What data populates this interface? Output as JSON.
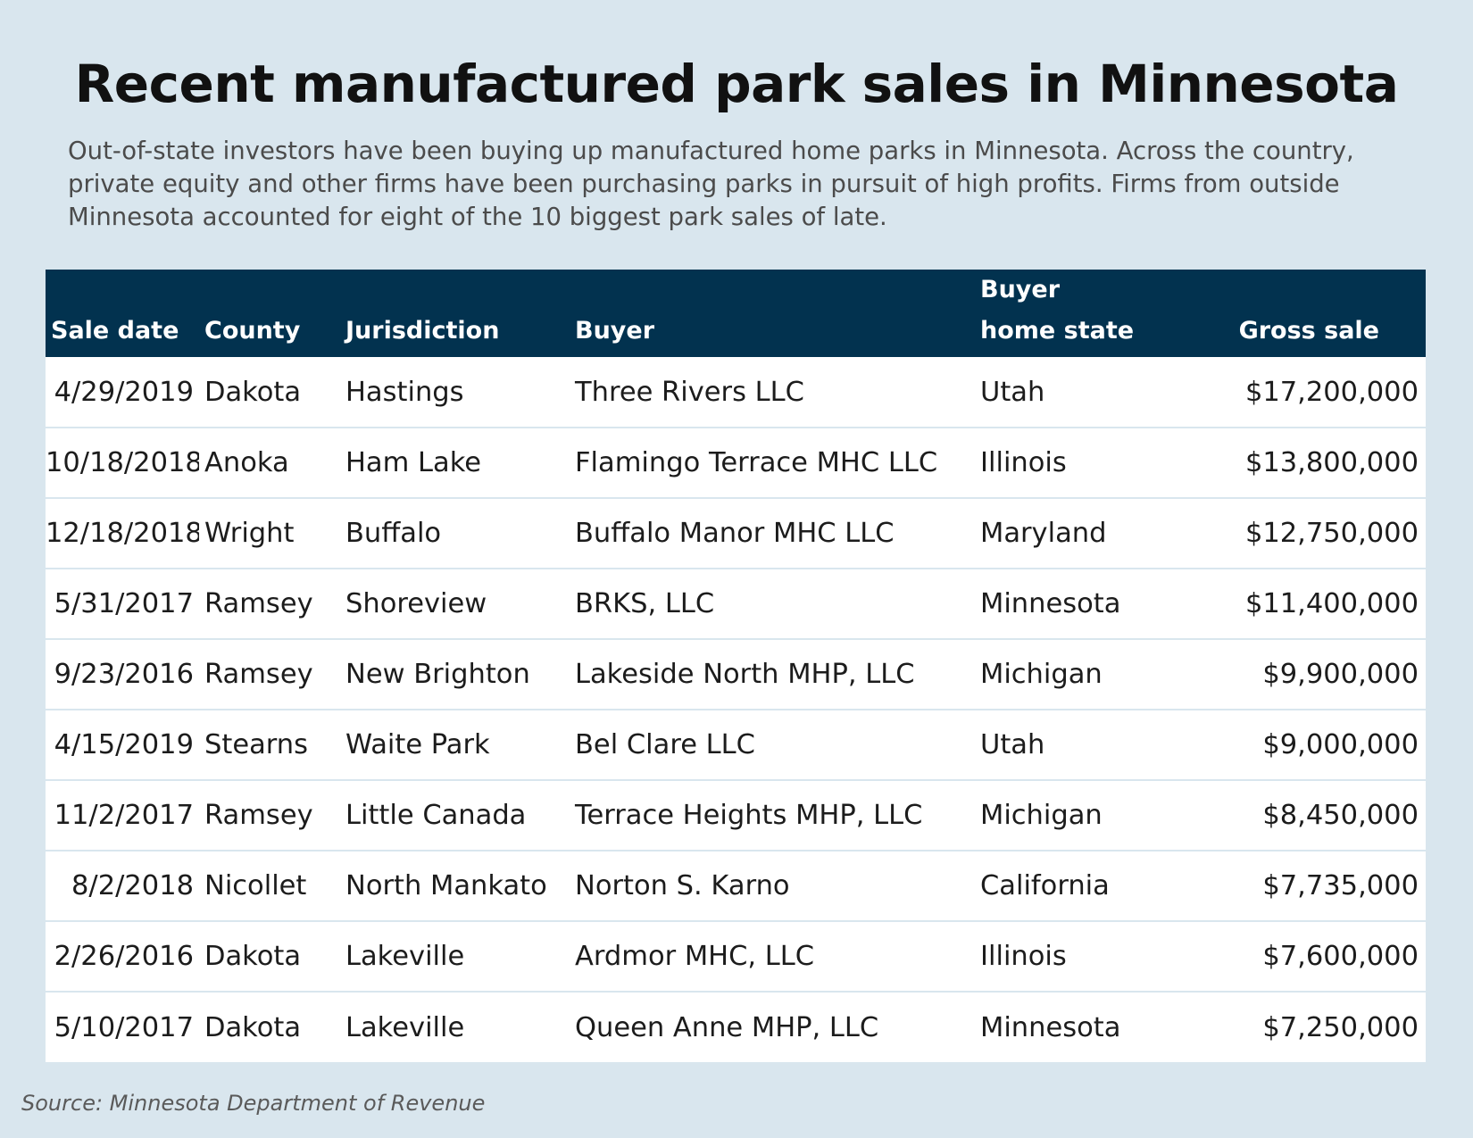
{
  "title": "Recent manufactured park sales in Minnesota",
  "subtitle": "Out-of-state investors have been buying up manufactured home parks in Minnesota. Across the country, private equity and other firms have been purchasing parks in pursuit of high profits. Firms from outside Minnesota accounted for eight of the 10 biggest park sales of late.",
  "source": "Source: Minnesota Department of Revenue",
  "colors": {
    "background": "#d9e6ee",
    "header": "#02324f",
    "row": "#ffffff"
  },
  "chart_data": {
    "type": "table",
    "columns": [
      "Sale date",
      "County",
      "Jurisdiction",
      "Buyer",
      "Buyer home state",
      "Gross sale"
    ],
    "column_headers": [
      {
        "line1": "",
        "line2": "Sale date"
      },
      {
        "line1": "",
        "line2": "County"
      },
      {
        "line1": "",
        "line2": "Jurisdiction"
      },
      {
        "line1": "",
        "line2": "Buyer"
      },
      {
        "line1": "Buyer",
        "line2": "home state"
      },
      {
        "line1": "",
        "line2": "Gross sale"
      }
    ],
    "rows": [
      [
        "4/29/2019",
        "Dakota",
        "Hastings",
        "Three Rivers LLC",
        "Utah",
        "$17,200,000"
      ],
      [
        "10/18/2018",
        "Anoka",
        "Ham Lake",
        "Flamingo Terrace MHC LLC",
        "Illinois",
        "$13,800,000"
      ],
      [
        "12/18/2018",
        "Wright",
        "Buffalo",
        "Buffalo Manor MHC LLC",
        "Maryland",
        "$12,750,000"
      ],
      [
        "5/31/2017",
        "Ramsey",
        "Shoreview",
        "BRKS, LLC",
        "Minnesota",
        "$11,400,000"
      ],
      [
        "9/23/2016",
        "Ramsey",
        "New Brighton",
        "Lakeside North MHP, LLC",
        "Michigan",
        "$9,900,000"
      ],
      [
        "4/15/2019",
        "Stearns",
        "Waite Park",
        "Bel Clare LLC",
        "Utah",
        "$9,000,000"
      ],
      [
        "11/2/2017",
        "Ramsey",
        "Little Canada",
        "Terrace Heights MHP, LLC",
        "Michigan",
        "$8,450,000"
      ],
      [
        "8/2/2018",
        "Nicollet",
        "North Mankato",
        "Norton S. Karno",
        "California",
        "$7,735,000"
      ],
      [
        "2/26/2016",
        "Dakota",
        "Lakeville",
        "Ardmor MHC, LLC",
        "Illinois",
        "$7,600,000"
      ],
      [
        "5/10/2017",
        "Dakota",
        "Lakeville",
        "Queen Anne MHP, LLC",
        "Minnesota",
        "$7,250,000"
      ]
    ]
  }
}
